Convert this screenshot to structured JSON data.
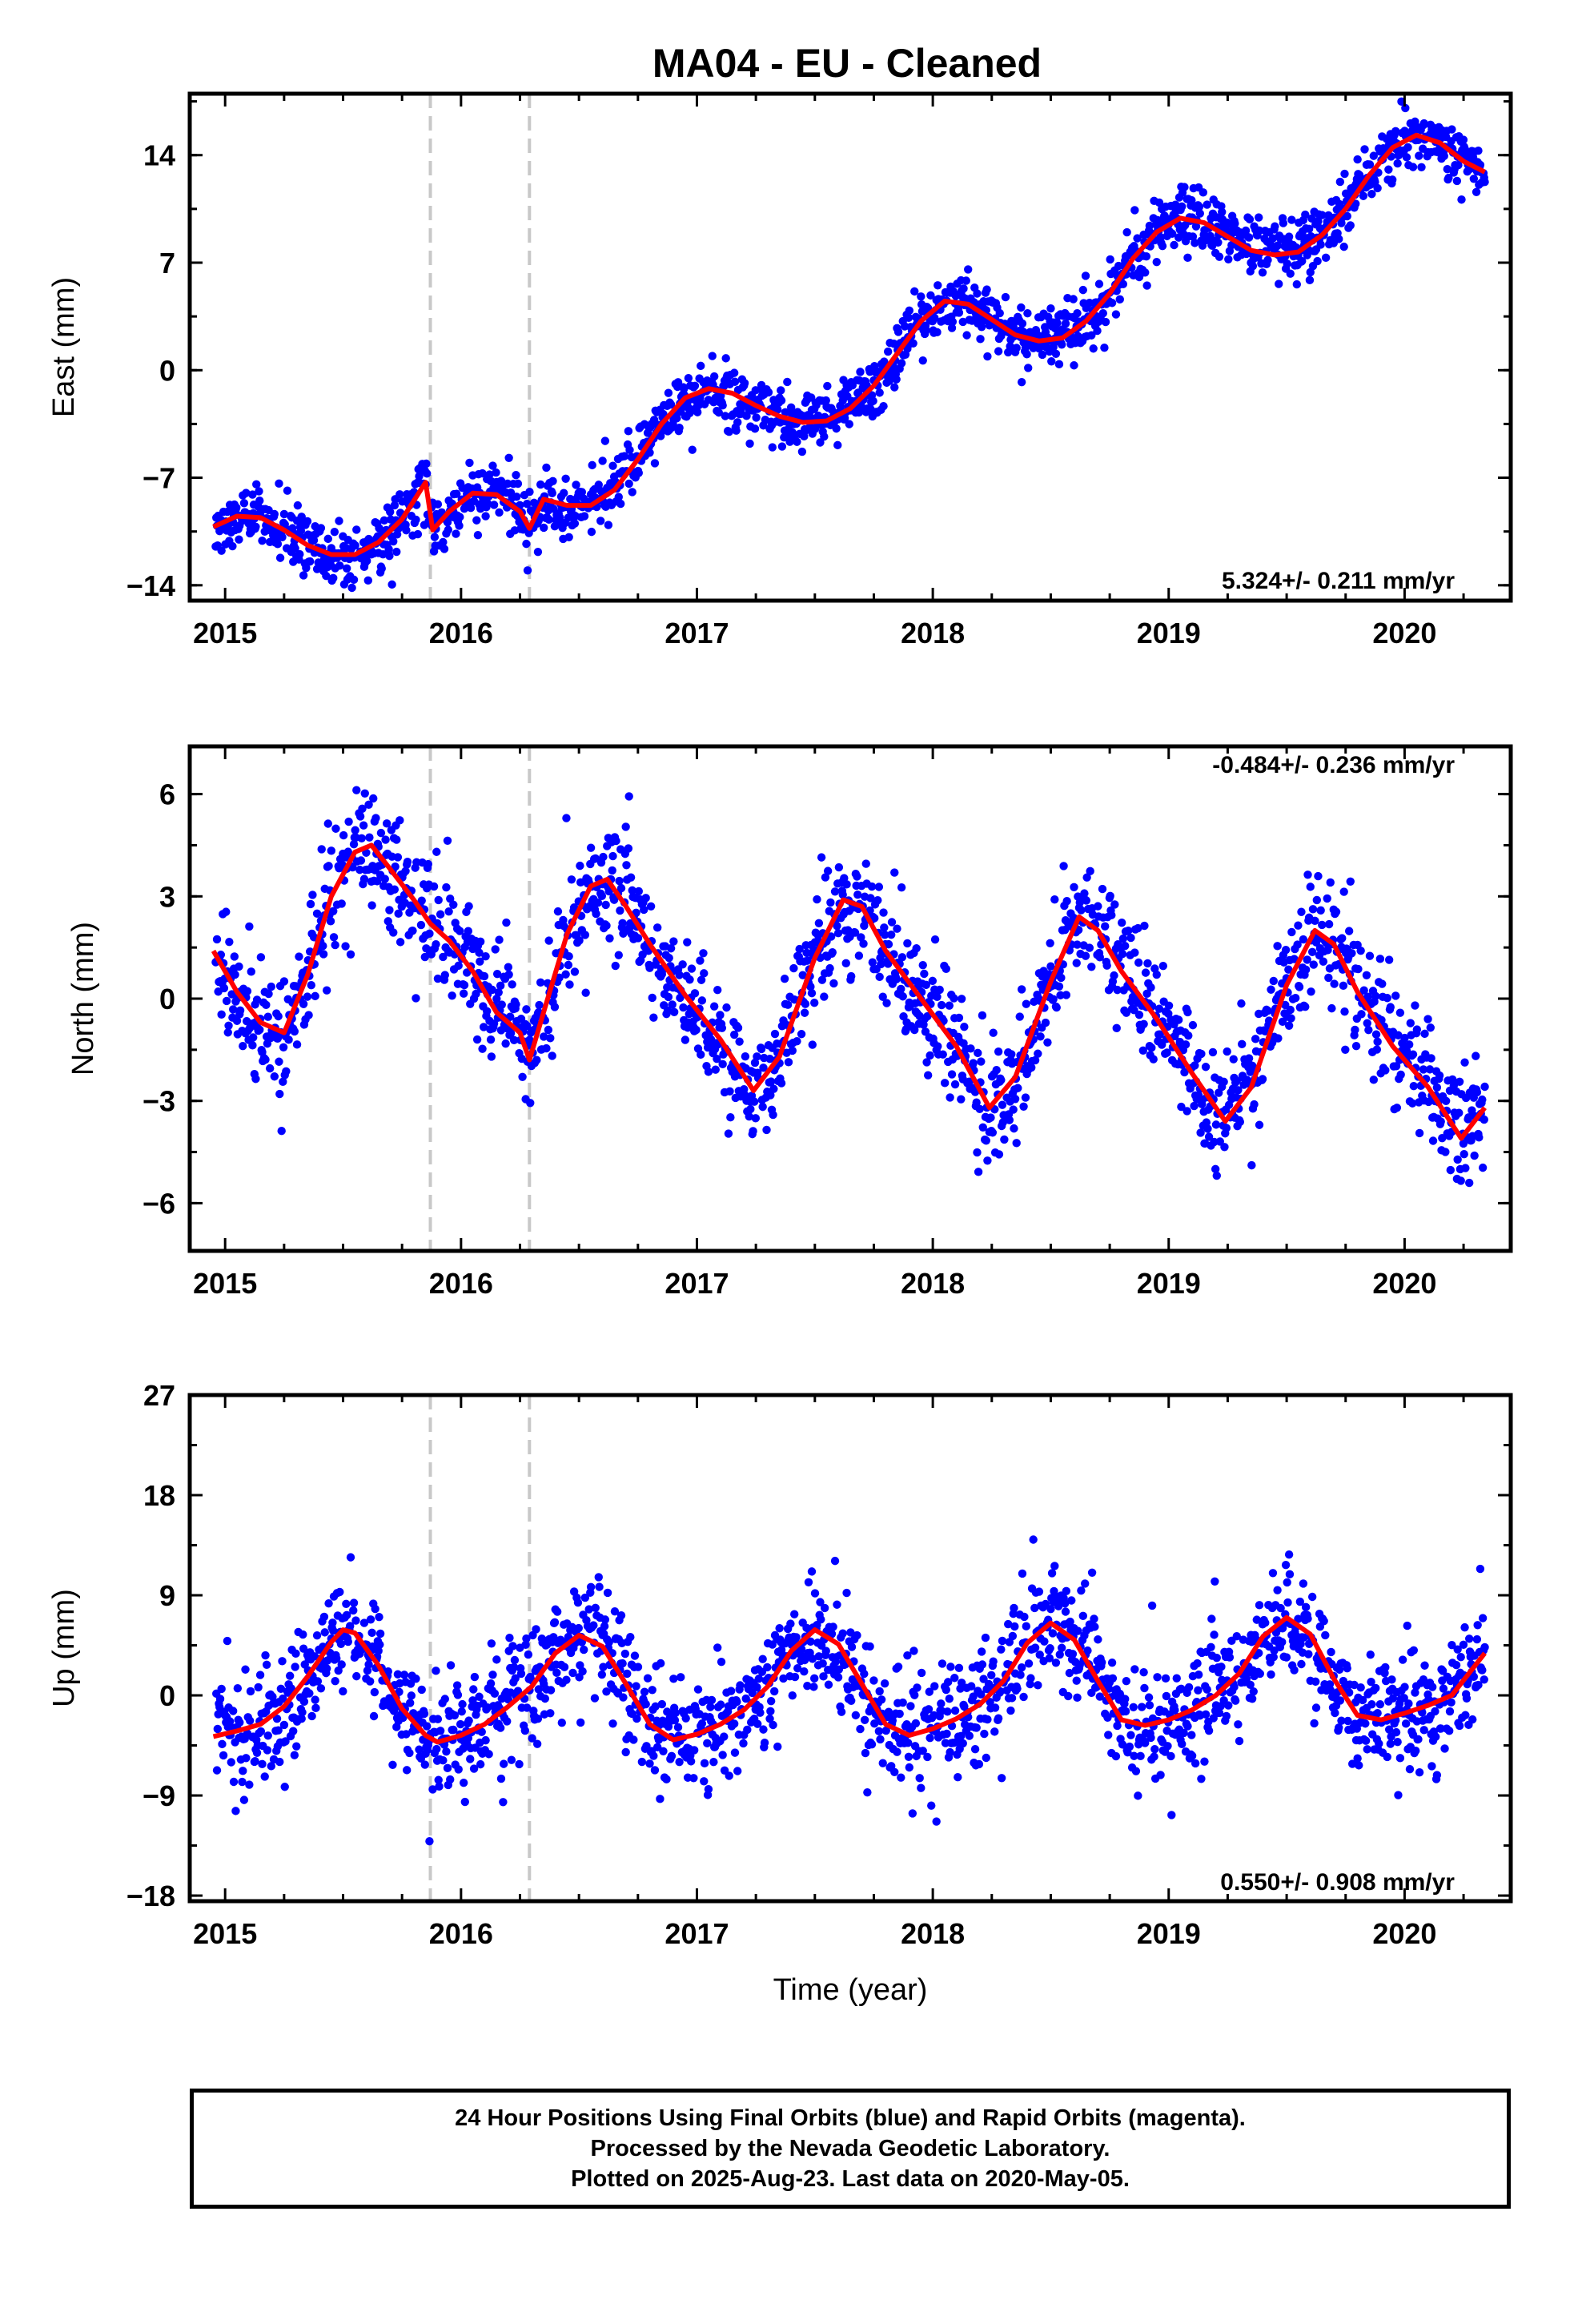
{
  "title": "MA04  - EU - Cleaned",
  "colors": {
    "final_orbits": "#0000ff",
    "model": "#ff0000",
    "rapid_orbits": "#ff00ff",
    "breaks": "#c8c8c8"
  },
  "footer": {
    "line1": "24 Hour Positions Using Final Orbits (blue) and Rapid Orbits (magenta).",
    "line2": "Processed by the Nevada Geodetic Laboratory.",
    "line3": "Plotted on 2025-Aug-23. Last data on 2020-May-05."
  },
  "chart_data": [
    {
      "type": "scatter",
      "title": "MA04  - EU - Cleaned",
      "ylabel": "East (mm)",
      "xlabel": "",
      "rate": "5.324+/- 0.211 mm/yr",
      "xlim": [
        2014.85,
        2020.45
      ],
      "ylim": [
        -15,
        18
      ],
      "xticks": [
        "2015",
        "2016",
        "2017",
        "2018",
        "2019",
        "2020"
      ],
      "yticks": [
        "-14",
        "-7",
        "0",
        "7",
        "14"
      ],
      "breaks": [
        2015.87,
        2016.29
      ],
      "series": [
        {
          "values": {
            "model": {
              "x": [
                2014.95,
                2015.05,
                2015.15,
                2015.25,
                2015.35,
                2015.45,
                2015.55,
                2015.65,
                2015.75,
                2015.85,
                2015.88,
                2015.95,
                2016.05,
                2016.15,
                2016.25,
                2016.29,
                2016.35,
                2016.45,
                2016.55,
                2016.65,
                2016.75,
                2016.85,
                2016.95,
                2017.05,
                2017.15,
                2017.25,
                2017.35,
                2017.45,
                2017.55,
                2017.65,
                2017.75,
                2017.85,
                2017.95,
                2018.05,
                2018.15,
                2018.25,
                2018.35,
                2018.45,
                2018.55,
                2018.65,
                2018.75,
                2018.85,
                2018.95,
                2019.05,
                2019.15,
                2019.25,
                2019.35,
                2019.45,
                2019.55,
                2019.65,
                2019.75,
                2019.85,
                2019.95,
                2020.05,
                2020.15,
                2020.25,
                2020.34
              ],
              "y": [
                -10.2,
                -9.5,
                -9.6,
                -10.4,
                -11.4,
                -12.0,
                -12.0,
                -11.2,
                -9.7,
                -7.3,
                -10.4,
                -9.2,
                -8.0,
                -8.1,
                -9.2,
                -10.3,
                -8.4,
                -8.8,
                -8.8,
                -7.8,
                -5.8,
                -3.5,
                -1.8,
                -1.2,
                -1.5,
                -2.3,
                -3.0,
                -3.4,
                -3.3,
                -2.5,
                -1.0,
                1.1,
                3.2,
                4.5,
                4.3,
                3.3,
                2.3,
                1.9,
                2.1,
                3.2,
                5.0,
                7.3,
                9.0,
                9.9,
                9.6,
                8.7,
                7.8,
                7.5,
                7.7,
                8.8,
                10.5,
                12.7,
                14.5,
                15.3,
                14.8,
                13.6,
                12.9
              ]
            }
          }
        }
      ]
    },
    {
      "type": "scatter",
      "ylabel": "North (mm)",
      "xlabel": "",
      "rate": "-0.484+/- 0.236 mm/yr",
      "xlim": [
        2014.85,
        2020.45
      ],
      "ylim": [
        -7.4,
        7.4
      ],
      "xticks": [
        "2015",
        "2016",
        "2017",
        "2018",
        "2019",
        "2020"
      ],
      "yticks": [
        "-6",
        "-3",
        "0",
        "3",
        "6"
      ],
      "breaks": [
        2015.87,
        2016.29
      ],
      "series": [
        {
          "values": {
            "model": {
              "x": [
                2014.95,
                2015.05,
                2015.15,
                2015.25,
                2015.35,
                2015.45,
                2015.55,
                2015.62,
                2015.7,
                2015.8,
                2015.87,
                2015.95,
                2016.05,
                2016.15,
                2016.25,
                2016.29,
                2016.35,
                2016.45,
                2016.55,
                2016.62,
                2016.7,
                2016.8,
                2016.95,
                2017.1,
                2017.24,
                2017.35,
                2017.5,
                2017.62,
                2017.7,
                2017.8,
                2017.95,
                2018.1,
                2018.24,
                2018.35,
                2018.5,
                2018.62,
                2018.7,
                2018.8,
                2018.95,
                2019.1,
                2019.24,
                2019.35,
                2019.5,
                2019.62,
                2019.7,
                2019.8,
                2019.95,
                2020.1,
                2020.24,
                2020.34
              ],
              "y": [
                1.4,
                0.2,
                -0.7,
                -1.0,
                0.7,
                3.0,
                4.3,
                4.5,
                3.8,
                2.9,
                2.2,
                1.7,
                0.8,
                -0.4,
                -1.0,
                -1.8,
                -0.4,
                1.9,
                3.3,
                3.5,
                2.7,
                1.6,
                0.1,
                -1.2,
                -2.7,
                -1.7,
                1.2,
                2.9,
                2.7,
                1.4,
                0.0,
                -1.4,
                -3.2,
                -2.3,
                0.5,
                2.4,
                2.0,
                0.8,
                -0.6,
                -2.2,
                -3.6,
                -2.6,
                0.4,
                2.0,
                1.6,
                0.2,
                -1.4,
                -2.6,
                -4.1,
                -3.2
              ]
            }
          }
        }
      ]
    },
    {
      "type": "scatter",
      "ylabel": "Up (mm)",
      "xlabel": "Time (year)",
      "rate": "0.550+/- 0.908 mm/yr",
      "xlim": [
        2014.85,
        2020.45
      ],
      "ylim": [
        -18.5,
        27
      ],
      "xticks": [
        "2015",
        "2016",
        "2017",
        "2018",
        "2019",
        "2020"
      ],
      "yticks": [
        "-18",
        "-9",
        "0",
        "9",
        "18",
        "27"
      ],
      "breaks": [
        2015.87,
        2016.29
      ],
      "series": [
        {
          "values": {
            "model": {
              "x": [
                2014.95,
                2015.05,
                2015.15,
                2015.25,
                2015.35,
                2015.45,
                2015.5,
                2015.55,
                2015.65,
                2015.75,
                2015.85,
                2015.9,
                2016.0,
                2016.1,
                2016.2,
                2016.3,
                2016.4,
                2016.5,
                2016.6,
                2016.7,
                2016.8,
                2016.9,
                2017.0,
                2017.1,
                2017.2,
                2017.3,
                2017.4,
                2017.5,
                2017.6,
                2017.7,
                2017.8,
                2017.9,
                2018.0,
                2018.1,
                2018.2,
                2018.3,
                2018.4,
                2018.5,
                2018.6,
                2018.7,
                2018.8,
                2018.9,
                2019.0,
                2019.1,
                2019.2,
                2019.3,
                2019.4,
                2019.5,
                2019.6,
                2019.7,
                2019.8,
                2019.9,
                2020.0,
                2020.1,
                2020.2,
                2020.34
              ],
              "y": [
                -3.7,
                -3.2,
                -2.6,
                -1.0,
                1.7,
                4.8,
                5.9,
                5.6,
                2.7,
                -1.2,
                -3.6,
                -4.2,
                -3.6,
                -2.6,
                -1.0,
                0.8,
                3.8,
                5.4,
                4.4,
                1.0,
                -2.6,
                -4.0,
                -3.5,
                -2.6,
                -1.3,
                0.8,
                4.0,
                5.9,
                4.6,
                1.0,
                -2.6,
                -3.6,
                -3.0,
                -2.1,
                -0.8,
                1.3,
                4.7,
                6.5,
                5.0,
                1.3,
                -2.2,
                -2.7,
                -2.2,
                -1.3,
                0.0,
                2.0,
                5.3,
                7.0,
                5.5,
                1.5,
                -1.8,
                -2.2,
                -1.6,
                -0.9,
                0.0,
                3.8
              ]
            }
          }
        }
      ]
    }
  ]
}
